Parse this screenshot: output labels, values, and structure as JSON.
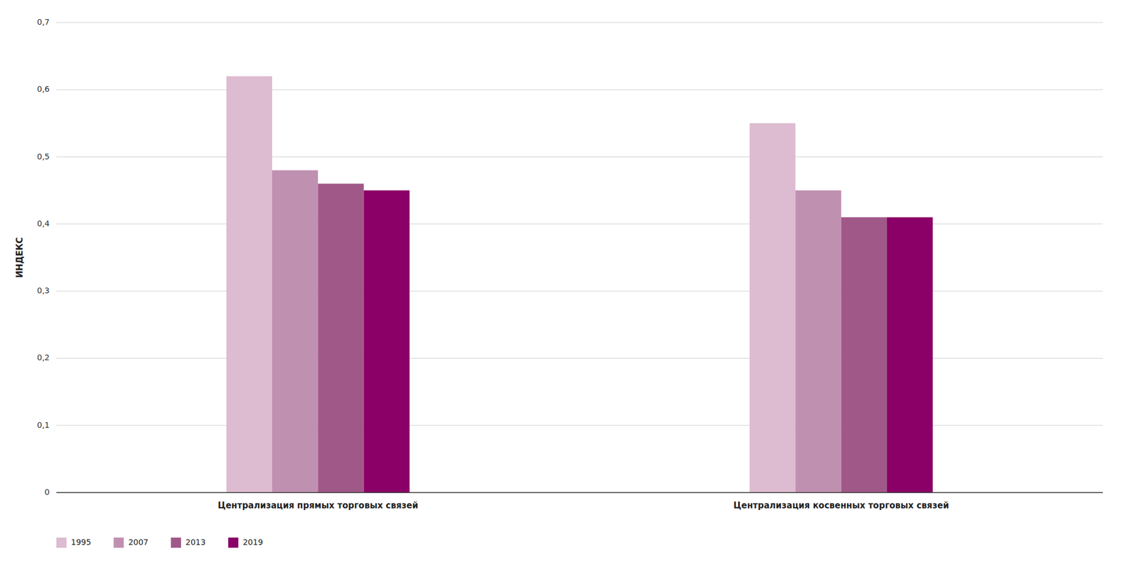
{
  "chart_data": {
    "type": "bar",
    "ylabel": "ИНДЕКС",
    "categories": [
      "Централизация прямых торговых связей",
      "Централизация косвенных торговых связей"
    ],
    "series": [
      {
        "name": "1995",
        "color": "#ddbbd0",
        "values": [
          0.62,
          0.55
        ]
      },
      {
        "name": "2007",
        "color": "#c090b0",
        "values": [
          0.48,
          0.45
        ]
      },
      {
        "name": "2013",
        "color": "#a05888",
        "values": [
          0.46,
          0.41
        ]
      },
      {
        "name": "2019",
        "color": "#8b0066",
        "values": [
          0.45,
          0.41
        ]
      }
    ],
    "ylim": [
      0,
      0.7
    ],
    "yticks": [
      0,
      {
        "value": 0.1,
        "label": "0,1"
      },
      {
        "value": 0.2,
        "label": "0,2"
      },
      {
        "value": 0.3,
        "label": "0,3"
      },
      {
        "value": 0.4,
        "label": "0,4"
      },
      {
        "value": 0.5,
        "label": "0,5"
      },
      {
        "value": 0.6,
        "label": "0,6"
      },
      {
        "value": 0.7,
        "label": "0,7"
      }
    ],
    "grid": true,
    "legend": "bottom"
  }
}
